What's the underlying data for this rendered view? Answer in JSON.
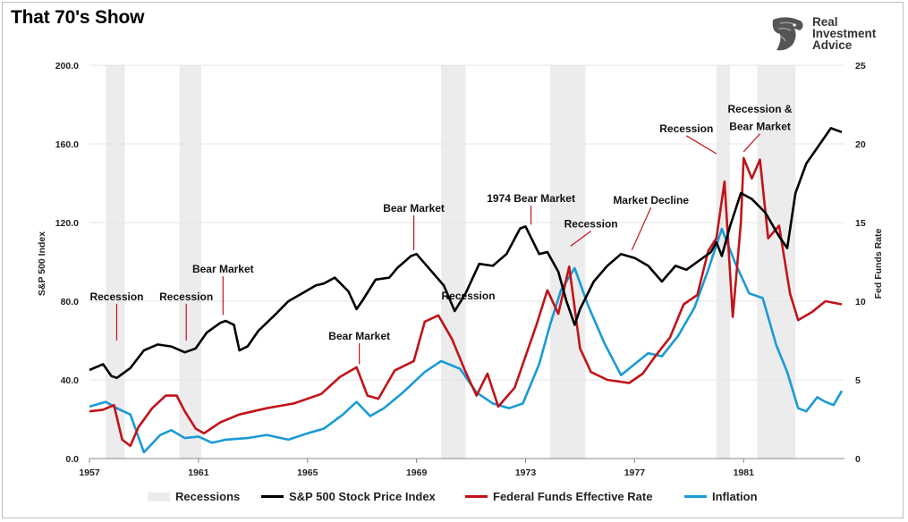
{
  "title": "That 70's Show",
  "logo": {
    "line1": "Real",
    "line2": "Investment",
    "line3": "Advice",
    "icon": "eagle-head-icon"
  },
  "colors": {
    "sp500": "#000000",
    "fed": "#c0141a",
    "inflation": "#1a9ad6",
    "recession": "#ececec"
  },
  "chart_data": {
    "type": "line",
    "xlim": [
      1957,
      1984.7
    ],
    "x_ticks": [
      "1957",
      "1961",
      "1965",
      "1969",
      "1973",
      "1977",
      "1981"
    ],
    "ylabel_left": "S&P 500 Index",
    "ylabel_right": "Fed Funds Rate",
    "ylim_left": [
      0,
      200
    ],
    "ylim_right": [
      0,
      25
    ],
    "y_ticks_left": [
      "0.0",
      "40.0",
      "80.0",
      "120.0",
      "160.0",
      "200.0"
    ],
    "y_ticks_right": [
      "0",
      "5",
      "10",
      "15",
      "20",
      "25"
    ],
    "grid": true,
    "legend_position": "bottom",
    "recessions": [
      [
        1957.6,
        1958.3
      ],
      [
        1960.3,
        1961.1
      ],
      [
        1969.9,
        1970.8
      ],
      [
        1973.9,
        1975.2
      ],
      [
        1980.0,
        1980.5
      ],
      [
        1981.5,
        1982.9
      ]
    ],
    "series": [
      {
        "name": "S&P 500 Stock Price Index",
        "axis": "left",
        "x": [
          1957.0,
          1957.5,
          1957.8,
          1958.0,
          1958.5,
          1959.0,
          1959.5,
          1960.0,
          1960.5,
          1960.9,
          1961.3,
          1961.8,
          1962.0,
          1962.3,
          1962.5,
          1962.8,
          1963.2,
          1963.8,
          1964.3,
          1964.8,
          1965.3,
          1965.6,
          1966.0,
          1966.5,
          1966.8,
          1967.0,
          1967.5,
          1968.0,
          1968.3,
          1968.8,
          1969.0,
          1969.5,
          1970.0,
          1970.4,
          1970.8,
          1971.3,
          1971.8,
          1972.3,
          1972.8,
          1973.0,
          1973.5,
          1973.8,
          1974.2,
          1974.5,
          1974.8,
          1975.0,
          1975.5,
          1976.0,
          1976.5,
          1977.0,
          1977.5,
          1978.0,
          1978.5,
          1978.9,
          1979.3,
          1979.8,
          1980.0,
          1980.2,
          1980.5,
          1980.9,
          1981.3,
          1981.8,
          1982.3,
          1982.6,
          1982.9,
          1983.3,
          1983.8,
          1984.2,
          1984.6
        ],
        "values": [
          45,
          48,
          42,
          41,
          46,
          55,
          58,
          57,
          54,
          56,
          64,
          69,
          70,
          68,
          55,
          57,
          65,
          73,
          80,
          84,
          88,
          89,
          92,
          85,
          76,
          80,
          91,
          92,
          97,
          103,
          104,
          96,
          88,
          75,
          84,
          99,
          98,
          104,
          117,
          118,
          104,
          105,
          95,
          80,
          68,
          76,
          90,
          98,
          104,
          102,
          98,
          90,
          98,
          96,
          100,
          105,
          110,
          103,
          118,
          135,
          132,
          125,
          113,
          107,
          135,
          150,
          160,
          168,
          166
        ]
      },
      {
        "name": "Federal Funds Effective Rate",
        "axis": "right",
        "x": [
          1957.0,
          1957.5,
          1957.9,
          1958.2,
          1958.5,
          1958.8,
          1959.3,
          1959.8,
          1960.2,
          1960.5,
          1960.9,
          1961.2,
          1961.8,
          1962.5,
          1963.5,
          1964.5,
          1965.5,
          1966.2,
          1966.8,
          1967.2,
          1967.6,
          1968.2,
          1968.9,
          1969.3,
          1969.8,
          1970.3,
          1970.8,
          1971.2,
          1971.6,
          1972.0,
          1972.6,
          1973.0,
          1973.4,
          1973.8,
          1974.2,
          1974.6,
          1975.0,
          1975.4,
          1976.0,
          1976.8,
          1977.3,
          1977.8,
          1978.3,
          1978.8,
          1979.3,
          1979.7,
          1980.0,
          1980.3,
          1980.6,
          1980.9,
          1981.0,
          1981.3,
          1981.6,
          1981.9,
          1982.3,
          1982.7,
          1983.0,
          1983.5,
          1984.0,
          1984.6
        ],
        "values": [
          3.0,
          3.1,
          3.4,
          1.2,
          0.8,
          2.0,
          3.2,
          4.0,
          4.0,
          3.0,
          1.9,
          1.6,
          2.3,
          2.8,
          3.2,
          3.5,
          4.1,
          5.2,
          5.8,
          4.0,
          3.8,
          5.6,
          6.2,
          8.7,
          9.1,
          7.6,
          5.5,
          4.0,
          5.4,
          3.3,
          4.5,
          6.5,
          8.5,
          10.7,
          9.2,
          12.2,
          7.0,
          5.5,
          5.0,
          4.8,
          5.4,
          6.6,
          7.7,
          9.8,
          10.4,
          13.2,
          14.0,
          17.6,
          9.0,
          15.0,
          19.1,
          17.8,
          19.0,
          14.0,
          14.8,
          10.5,
          8.8,
          9.3,
          10.0,
          9.8
        ]
      },
      {
        "name": "Inflation",
        "axis": "right",
        "x": [
          1957.0,
          1957.6,
          1958.0,
          1958.5,
          1959.0,
          1959.6,
          1960.0,
          1960.5,
          1961.0,
          1961.5,
          1962.0,
          1962.8,
          1963.5,
          1964.3,
          1965.0,
          1965.6,
          1966.3,
          1966.8,
          1967.3,
          1967.8,
          1968.5,
          1969.3,
          1969.9,
          1970.6,
          1971.2,
          1971.8,
          1972.4,
          1972.9,
          1973.5,
          1973.9,
          1974.3,
          1974.8,
          1975.3,
          1975.9,
          1976.5,
          1977.0,
          1977.5,
          1978.0,
          1978.6,
          1979.2,
          1979.7,
          1980.2,
          1980.7,
          1981.2,
          1981.7,
          1982.2,
          1982.6,
          1983.0,
          1983.3,
          1983.7,
          1984.0,
          1984.3,
          1984.6
        ],
        "values": [
          3.3,
          3.6,
          3.2,
          2.8,
          0.4,
          1.5,
          1.8,
          1.3,
          1.4,
          1.0,
          1.2,
          1.3,
          1.5,
          1.2,
          1.6,
          1.9,
          2.8,
          3.6,
          2.7,
          3.2,
          4.2,
          5.5,
          6.2,
          5.7,
          4.2,
          3.5,
          3.2,
          3.5,
          6.0,
          8.5,
          10.7,
          12.1,
          9.7,
          7.3,
          5.3,
          6.0,
          6.7,
          6.5,
          7.8,
          9.6,
          12.0,
          14.6,
          12.4,
          10.5,
          10.2,
          7.2,
          5.5,
          3.2,
          3.0,
          3.9,
          3.6,
          3.4,
          4.3
        ]
      }
    ],
    "annotations": [
      {
        "text": "Recession",
        "x": 1958.0,
        "y": 80.5,
        "ax": 1958.0,
        "ay": 60
      },
      {
        "text": "Recession",
        "x": 1960.55,
        "y": 80.5,
        "ax": 1960.55,
        "ay": 60
      },
      {
        "text": "Bear Market",
        "x": 1961.9,
        "y": 94.5,
        "ax": 1961.9,
        "ay": 73
      },
      {
        "text": "Bear Market",
        "x": 1968.9,
        "y": 125.5,
        "ax": 1968.9,
        "ay": 106
      },
      {
        "text": "Bear Market",
        "x": 1966.9,
        "y": 60.5,
        "ax": 1966.9,
        "ay": 48
      },
      {
        "text": "Recession",
        "x": 1970.9,
        "y": 81,
        "ax": null,
        "ay": null
      },
      {
        "text": "1974 Bear Market",
        "x": 1973.2,
        "y": 130.5,
        "ax": 1973.2,
        "ay": 119
      },
      {
        "text": "Recession",
        "x": 1975.4,
        "y": 117.5,
        "ax": 1974.65,
        "ay": 108
      },
      {
        "text": "Market Decline",
        "x": 1977.6,
        "y": 129.5,
        "ax": 1976.9,
        "ay": 106
      },
      {
        "text": "Recession",
        "x": 1978.9,
        "y": 166,
        "ax": 1980.0,
        "ay": 155
      },
      {
        "text": "Recession &",
        "x": 1981.6,
        "y": 176,
        "ax": null,
        "ay": null
      },
      {
        "text": "Bear Market",
        "x": 1981.6,
        "y": 167,
        "ax": 1981.0,
        "ay": 156
      }
    ]
  },
  "legend": {
    "recessions": "Recessions",
    "sp500": "S&P 500 Stock Price Index",
    "fed": "Federal Funds Effective Rate",
    "inflation": "Inflation"
  }
}
